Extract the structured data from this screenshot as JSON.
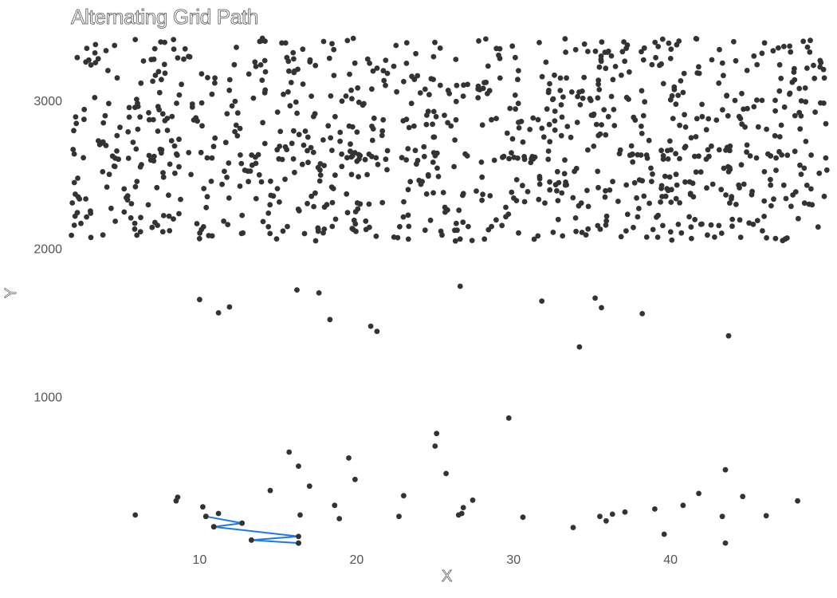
{
  "chart_data": {
    "type": "scatter",
    "title": "Alternating Grid Path",
    "xlabel": "X",
    "ylabel": "Y",
    "xlim": [
      1.8,
      50
    ],
    "ylim": [
      0,
      3420
    ],
    "x_ticks": [
      10,
      20,
      30,
      40
    ],
    "y_ticks": [
      1000,
      2000,
      3000
    ],
    "grid": false,
    "point_color": "#333333",
    "path_color": "#1f78e8",
    "path": {
      "x": [
        10.4,
        12.7,
        10.9,
        16.3,
        13.3,
        16.3
      ],
      "y": [
        190,
        145,
        120,
        55,
        30,
        10
      ]
    },
    "lower_points": {
      "x": [
        5.9,
        8.5,
        8.6,
        10.2,
        10.4,
        10.9,
        11.2,
        12.7,
        13.3,
        14.5,
        15.7,
        16.3,
        16.3,
        16.4,
        17.0,
        18.6,
        18.9,
        19.5,
        19.9,
        22.7,
        23.0,
        25.0,
        25.1,
        25.7,
        26.5,
        26.7,
        26.8,
        27.4,
        29.7,
        30.6,
        33.8,
        35.5,
        35.9,
        36.3,
        37.1,
        39.0,
        39.6,
        40.8,
        41.8,
        43.3,
        43.5,
        43.5,
        44.6,
        46.1,
        48.1
      ],
      "y": [
        200,
        295,
        320,
        255,
        190,
        120,
        210,
        145,
        30,
        365,
        625,
        530,
        10,
        200,
        395,
        265,
        175,
        585,
        440,
        190,
        330,
        665,
        750,
        480,
        200,
        210,
        250,
        300,
        855,
        185,
        115,
        190,
        160,
        205,
        220,
        240,
        70,
        265,
        345,
        190,
        505,
        10,
        325,
        195,
        295
      ]
    },
    "outlier_points": {
      "x": [
        10.0,
        11.2,
        11.9,
        16.2,
        17.6,
        18.3,
        20.9,
        21.3,
        26.6,
        31.8,
        34.2,
        35.2,
        35.6,
        38.2,
        43.7
      ],
      "y": [
        1655,
        1565,
        1605,
        1720,
        1700,
        1520,
        1475,
        1440,
        1745,
        1645,
        1335,
        1665,
        1600,
        1560,
        1410
      ]
    },
    "dense_cluster": {
      "description_none": "",
      "count": 1000,
      "x_range": [
        1.8,
        50
      ],
      "y_range": [
        2000,
        3420
      ]
    }
  }
}
